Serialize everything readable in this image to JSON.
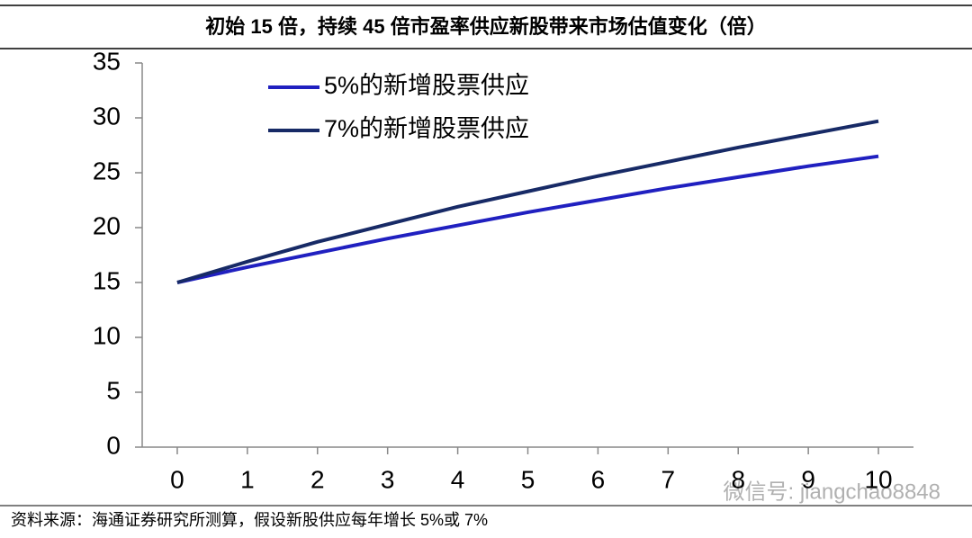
{
  "chart_data": {
    "type": "line",
    "title": "初始 15 倍，持续 45 倍市盈率供应新股带来市场估值变化（倍）",
    "x": [
      0,
      1,
      2,
      3,
      4,
      5,
      6,
      7,
      8,
      9,
      10
    ],
    "series": [
      {
        "name": "5%的新增股票供应",
        "color": "#2020c0",
        "values": [
          15,
          16.4,
          17.7,
          19.0,
          20.2,
          21.4,
          22.5,
          23.6,
          24.6,
          25.6,
          26.5
        ]
      },
      {
        "name": "7%的新增股票供应",
        "color": "#172a66",
        "values": [
          15,
          16.9,
          18.7,
          20.3,
          21.9,
          23.3,
          24.7,
          26.0,
          27.3,
          28.5,
          29.7
        ]
      }
    ],
    "xlim": [
      -0.5,
      10.5
    ],
    "xticks": [
      0,
      1,
      2,
      3,
      4,
      5,
      6,
      7,
      8,
      9,
      10
    ],
    "ylim": [
      0,
      35
    ],
    "yticks": [
      0,
      5,
      10,
      15,
      20,
      25,
      30,
      35
    ],
    "source": "资料来源：海通证券研究所测算，假设新股供应每年增长 5%或 7%",
    "watermark": "微信号: jiangchao8848"
  }
}
